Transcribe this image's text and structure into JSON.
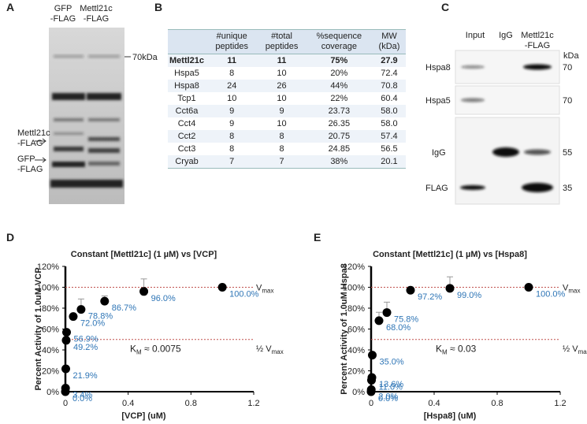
{
  "panel_a": {
    "label": "A",
    "lanes": [
      [
        "GFP",
        "-FLAG"
      ],
      [
        "Mettl21c",
        "-FLAG"
      ]
    ],
    "marker": "70kDa",
    "arrows": [
      [
        "Mettl21c",
        "-FLAG"
      ],
      [
        "GFP",
        "-FLAG"
      ]
    ]
  },
  "table": {
    "label": "B",
    "header": [
      "#unique peptides",
      "#total peptides",
      "%sequence coverage",
      "MW (kDa)"
    ],
    "rows": [
      [
        "Mettl21c",
        "11",
        "11",
        "75%",
        "27.9"
      ],
      [
        "Hspa5",
        "8",
        "10",
        "20%",
        "72.4"
      ],
      [
        "Hspa8",
        "24",
        "26",
        "44%",
        "70.8"
      ],
      [
        "Tcp1",
        "10",
        "10",
        "22%",
        "60.4"
      ],
      [
        "Cct6a",
        "9",
        "9",
        "23.73",
        "58.0"
      ],
      [
        "Cct4",
        "9",
        "10",
        "26.35",
        "58.0"
      ],
      [
        "Cct2",
        "8",
        "8",
        "20.75",
        "57.4"
      ],
      [
        "Cct3",
        "8",
        "8",
        "24.85",
        "56.5"
      ],
      [
        "Cryab",
        "7",
        "7",
        "38%",
        "20.1"
      ]
    ]
  },
  "panel_c": {
    "label": "C",
    "columns": [
      [
        "Input"
      ],
      [
        "IgG"
      ],
      [
        "Mettl21c",
        "-FLAG"
      ]
    ],
    "unit": "kDa",
    "rows": [
      {
        "name": "Hspa8",
        "marker": "70"
      },
      {
        "name": "Hspa5",
        "marker": "70"
      },
      {
        "name": "IgG",
        "marker": "55"
      },
      {
        "name": "FLAG",
        "marker": "35"
      }
    ]
  },
  "chart_data": [
    {
      "type": "scatter",
      "panel_label": "D",
      "title": "Constant [Mettl21c] (1 µM) vs [VCP]",
      "x_label": "[VCP] (uM)",
      "y_label": "Percent Activity of 1.0uM VCP",
      "x": [
        0,
        0.001,
        0.0025,
        0.005,
        0.0075,
        0.05,
        0.1,
        0.25,
        0.5,
        1.0
      ],
      "values": [
        0.0,
        3.4,
        21.9,
        49.2,
        56.9,
        72.0,
        78.8,
        86.7,
        96.0,
        100.0
      ],
      "value_labels": [
        "0.0%",
        "3.4%",
        "21.9%",
        "49.2%",
        "56.9%",
        "72.0%",
        "78.8%",
        "86.7%",
        "96.0%",
        "100.0%"
      ],
      "errors": [
        null,
        null,
        null,
        null,
        null,
        null,
        10,
        5,
        12,
        null
      ],
      "color": "#000000",
      "label_color": "#2e75b6",
      "xlim": [
        0,
        1.2
      ],
      "xticks": [
        0,
        0.4,
        0.8,
        1.2
      ],
      "ylim": [
        0,
        120
      ],
      "yticks": [
        {
          "value": 0,
          "label": "0%"
        },
        {
          "value": 20,
          "label": "20%"
        },
        {
          "value": 40,
          "label": "40%"
        },
        {
          "value": 60,
          "label": "60%"
        },
        {
          "value": 80,
          "label": "80%"
        },
        {
          "value": 100,
          "label": "100%"
        },
        {
          "value": 120,
          "label": "120%"
        }
      ],
      "hlines": [
        {
          "value": 100,
          "label": [
            "V",
            "max"
          ]
        },
        {
          "value": 50,
          "label": [
            "½ V",
            "max"
          ]
        }
      ],
      "annotation": [
        "K",
        "M",
        " ≈ 0.0075"
      ]
    },
    {
      "type": "scatter",
      "panel_label": "E",
      "title": "Constant [Mettl21c] (1 µM) vs [Hspa8]",
      "x_label": "[Hspa8] (uM)",
      "y_label": "Percent Activity of 1.0uM Hspa8",
      "x": [
        0,
        0.001,
        0.0025,
        0.005,
        0.0075,
        0.05,
        0.1,
        0.25,
        0.5,
        1.0
      ],
      "values": [
        0.0,
        2.0,
        11.0,
        13.6,
        35.0,
        68.0,
        75.8,
        97.2,
        99.0,
        100.0
      ],
      "value_labels": [
        "0.0%",
        "2.0%",
        "11.0%",
        "13.6%",
        "35.0%",
        "68.0%",
        "75.8%",
        "97.2%",
        "99.0%",
        "100.0%"
      ],
      "errors": [
        null,
        null,
        null,
        null,
        null,
        8,
        10,
        null,
        11,
        null
      ],
      "color": "#000000",
      "label_color": "#2e75b6",
      "xlim": [
        0,
        1.2
      ],
      "xticks": [
        0,
        0.4,
        0.8,
        1.2
      ],
      "ylim": [
        0,
        120
      ],
      "yticks": [
        {
          "value": 0,
          "label": "0%"
        },
        {
          "value": 20,
          "label": "20%"
        },
        {
          "value": 40,
          "label": "40%"
        },
        {
          "value": 60,
          "label": "60%"
        },
        {
          "value": 80,
          "label": "80%"
        },
        {
          "value": 100,
          "label": "100%"
        },
        {
          "value": 120,
          "label": "120%"
        }
      ],
      "hlines": [
        {
          "value": 100,
          "label": [
            "V",
            "max"
          ]
        },
        {
          "value": 50,
          "label": [
            "½ V",
            "max"
          ]
        }
      ],
      "annotation": [
        "K",
        "M",
        " ≈ 0.03"
      ]
    }
  ]
}
